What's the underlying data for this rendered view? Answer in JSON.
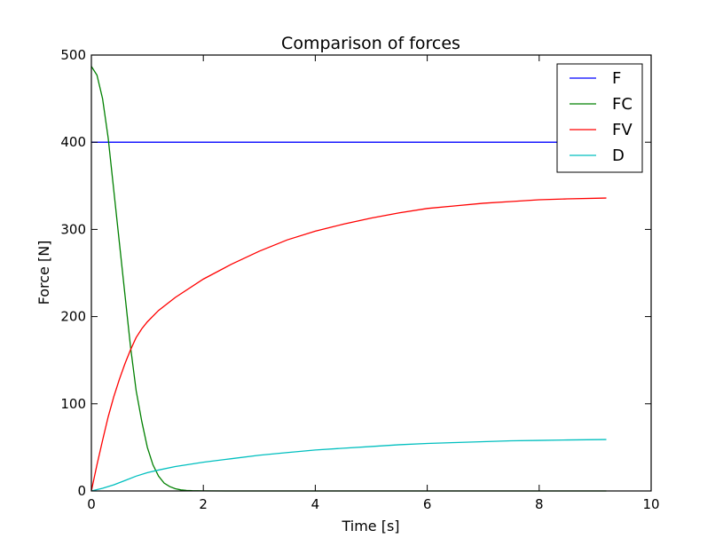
{
  "chart_data": {
    "type": "line",
    "title": "Comparison of forces",
    "xlabel": "Time [s]",
    "ylabel": "Force [N]",
    "xlim": [
      0,
      10
    ],
    "ylim": [
      0,
      500
    ],
    "xticks": [
      0,
      2,
      4,
      6,
      8,
      10
    ],
    "yticks": [
      0,
      100,
      200,
      300,
      400,
      500
    ],
    "xtick_labels": [
      "0",
      "2",
      "4",
      "6",
      "8",
      "10"
    ],
    "ytick_labels": [
      "0",
      "100",
      "200",
      "300",
      "400",
      "500"
    ],
    "grid": false,
    "legend_position": "top-right",
    "series": [
      {
        "name": "F",
        "color": "#0000ff",
        "x": [
          0,
          9.2
        ],
        "y": [
          400,
          400
        ]
      },
      {
        "name": "FC",
        "color": "#008000",
        "x": [
          0,
          0.1,
          0.2,
          0.3,
          0.4,
          0.5,
          0.6,
          0.7,
          0.8,
          0.9,
          1.0,
          1.1,
          1.2,
          1.3,
          1.4,
          1.5,
          1.6,
          1.7,
          1.8,
          2.0,
          2.5,
          3,
          4,
          5,
          6,
          7,
          8,
          9.2
        ],
        "y": [
          487,
          477,
          450,
          405,
          345,
          285,
          225,
          165,
          115,
          80,
          50,
          30,
          17,
          9,
          5,
          2.5,
          1.2,
          0.6,
          0.3,
          0.1,
          0,
          0,
          0,
          0,
          0,
          0,
          0,
          0
        ]
      },
      {
        "name": "FV",
        "color": "#ff0000",
        "x": [
          0,
          0.1,
          0.2,
          0.3,
          0.4,
          0.5,
          0.6,
          0.7,
          0.8,
          0.9,
          1.0,
          1.2,
          1.5,
          2.0,
          2.5,
          3.0,
          3.5,
          4.0,
          4.5,
          5.0,
          5.5,
          6.0,
          6.5,
          7.0,
          7.5,
          8.0,
          8.5,
          9.2
        ],
        "y": [
          0,
          30,
          58,
          85,
          108,
          128,
          146,
          162,
          176,
          186,
          194,
          207,
          222,
          243,
          260,
          275,
          288,
          298,
          306,
          313,
          319,
          324,
          327,
          330,
          332,
          334,
          335,
          336
        ]
      },
      {
        "name": "D",
        "color": "#00bfbf",
        "x": [
          0,
          0.2,
          0.4,
          0.6,
          0.8,
          1.0,
          1.2,
          1.5,
          2.0,
          2.5,
          3.0,
          3.5,
          4.0,
          4.5,
          5.0,
          5.5,
          6.0,
          6.5,
          7.0,
          7.5,
          8.0,
          8.5,
          9.2
        ],
        "y": [
          0,
          3,
          7,
          12,
          17,
          21,
          24,
          28,
          33,
          37,
          41,
          44,
          47,
          49,
          51,
          53,
          54.5,
          55.5,
          56.5,
          57.5,
          58,
          58.5,
          59
        ]
      }
    ]
  }
}
